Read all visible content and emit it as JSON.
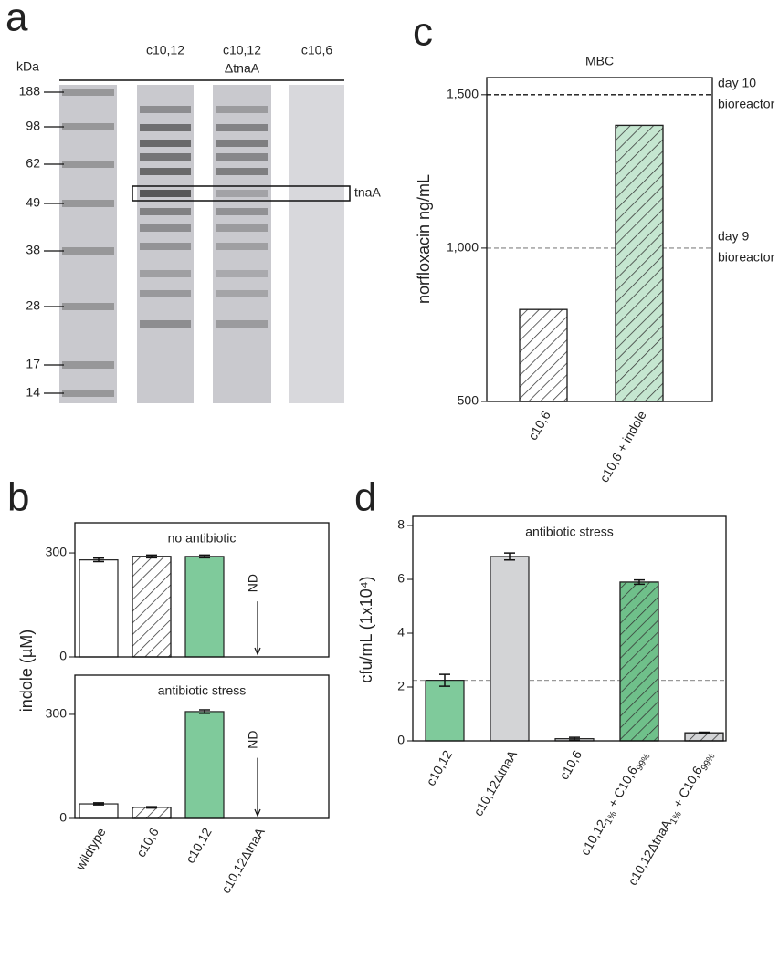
{
  "chart_data": [
    {
      "type": "gel",
      "panel": "a",
      "y_label": "kDa",
      "lanes": [
        null,
        [
          "c10,12"
        ],
        [
          "c10,12",
          "ΔtnaA"
        ],
        [
          "c10,6"
        ]
      ],
      "markers": [
        188,
        98,
        62,
        49,
        38,
        28,
        17,
        14
      ],
      "box_label": "tnaA"
    },
    {
      "type": "bar",
      "panel": "b",
      "title": "no antibiotic",
      "y_label": "indole (µM)",
      "values": [
        280,
        290,
        290,
        null
      ],
      "errors": [
        5,
        4,
        4,
        null
      ],
      "value_labels": [
        null,
        null,
        null,
        "ND"
      ],
      "colors": [
        "#ffffff",
        "#ffffff",
        "#7fca9b",
        null
      ],
      "hatched": [
        false,
        true,
        false,
        false
      ],
      "ylim": [
        0,
        387
      ],
      "yticks": [
        0,
        300
      ]
    },
    {
      "type": "bar",
      "title": "antibiotic stress",
      "categories": [
        "wildtype",
        "c10,6",
        "c10,12",
        "c10,12ΔtnaA"
      ],
      "values": [
        42,
        32,
        308,
        null
      ],
      "errors": [
        3,
        2,
        5,
        null
      ],
      "value_labels": [
        null,
        null,
        null,
        "ND"
      ],
      "colors": [
        "#ffffff",
        "#ffffff",
        "#7fca9b",
        null
      ],
      "hatched": [
        false,
        true,
        false,
        false
      ],
      "ylim": [
        0,
        413
      ],
      "yticks": [
        0,
        300
      ]
    },
    {
      "type": "bar",
      "panel": "c",
      "title": "MBC",
      "y_label": "norfloxacin ng/mL",
      "categories": [
        "c10,6",
        "c10,6 + indole"
      ],
      "values": [
        800,
        1400
      ],
      "colors": [
        "#ffffff",
        "#c5e6d0"
      ],
      "hatched": [
        true,
        true
      ],
      "ylim": [
        500,
        1556
      ],
      "yticks": [
        500,
        {
          "value": 1000,
          "label": "1,000"
        },
        {
          "value": 1500,
          "label": "1,500"
        }
      ],
      "reference_lines": [
        {
          "value": 1500,
          "label": [
            "day 10",
            "bioreactor"
          ],
          "color": "#111"
        },
        {
          "value": 1000,
          "label": [
            "day 9",
            "bioreactor"
          ],
          "color": "#999"
        }
      ]
    },
    {
      "type": "bar",
      "panel": "d",
      "title": "antibiotic stress",
      "y_label": "cfu/mL (1x10⁴)",
      "categories": [
        [
          "c10,12"
        ],
        [
          "c10,12ΔtnaA"
        ],
        [
          "c10,6"
        ],
        [
          "c10,12",
          "1%",
          " + C10,6",
          "99%"
        ],
        [
          "c10,12ΔtnaA",
          "1%",
          " + C10,6",
          "99%"
        ]
      ],
      "values": [
        2.25,
        6.85,
        0.08,
        5.9,
        0.3
      ],
      "errors": [
        0.22,
        0.13,
        0.05,
        0.08,
        0.02
      ],
      "colors": [
        "#7fca9b",
        "#d3d4d6",
        "#d3d4d6",
        "#6fc08a",
        "#d3d4d6"
      ],
      "hatched": [
        false,
        false,
        false,
        true,
        true
      ],
      "ylim": [
        0,
        8.34
      ],
      "yticks": [
        0,
        2,
        4,
        6,
        8
      ],
      "reference_lines": [
        {
          "value": 2.25,
          "color": "#999"
        }
      ]
    }
  ]
}
